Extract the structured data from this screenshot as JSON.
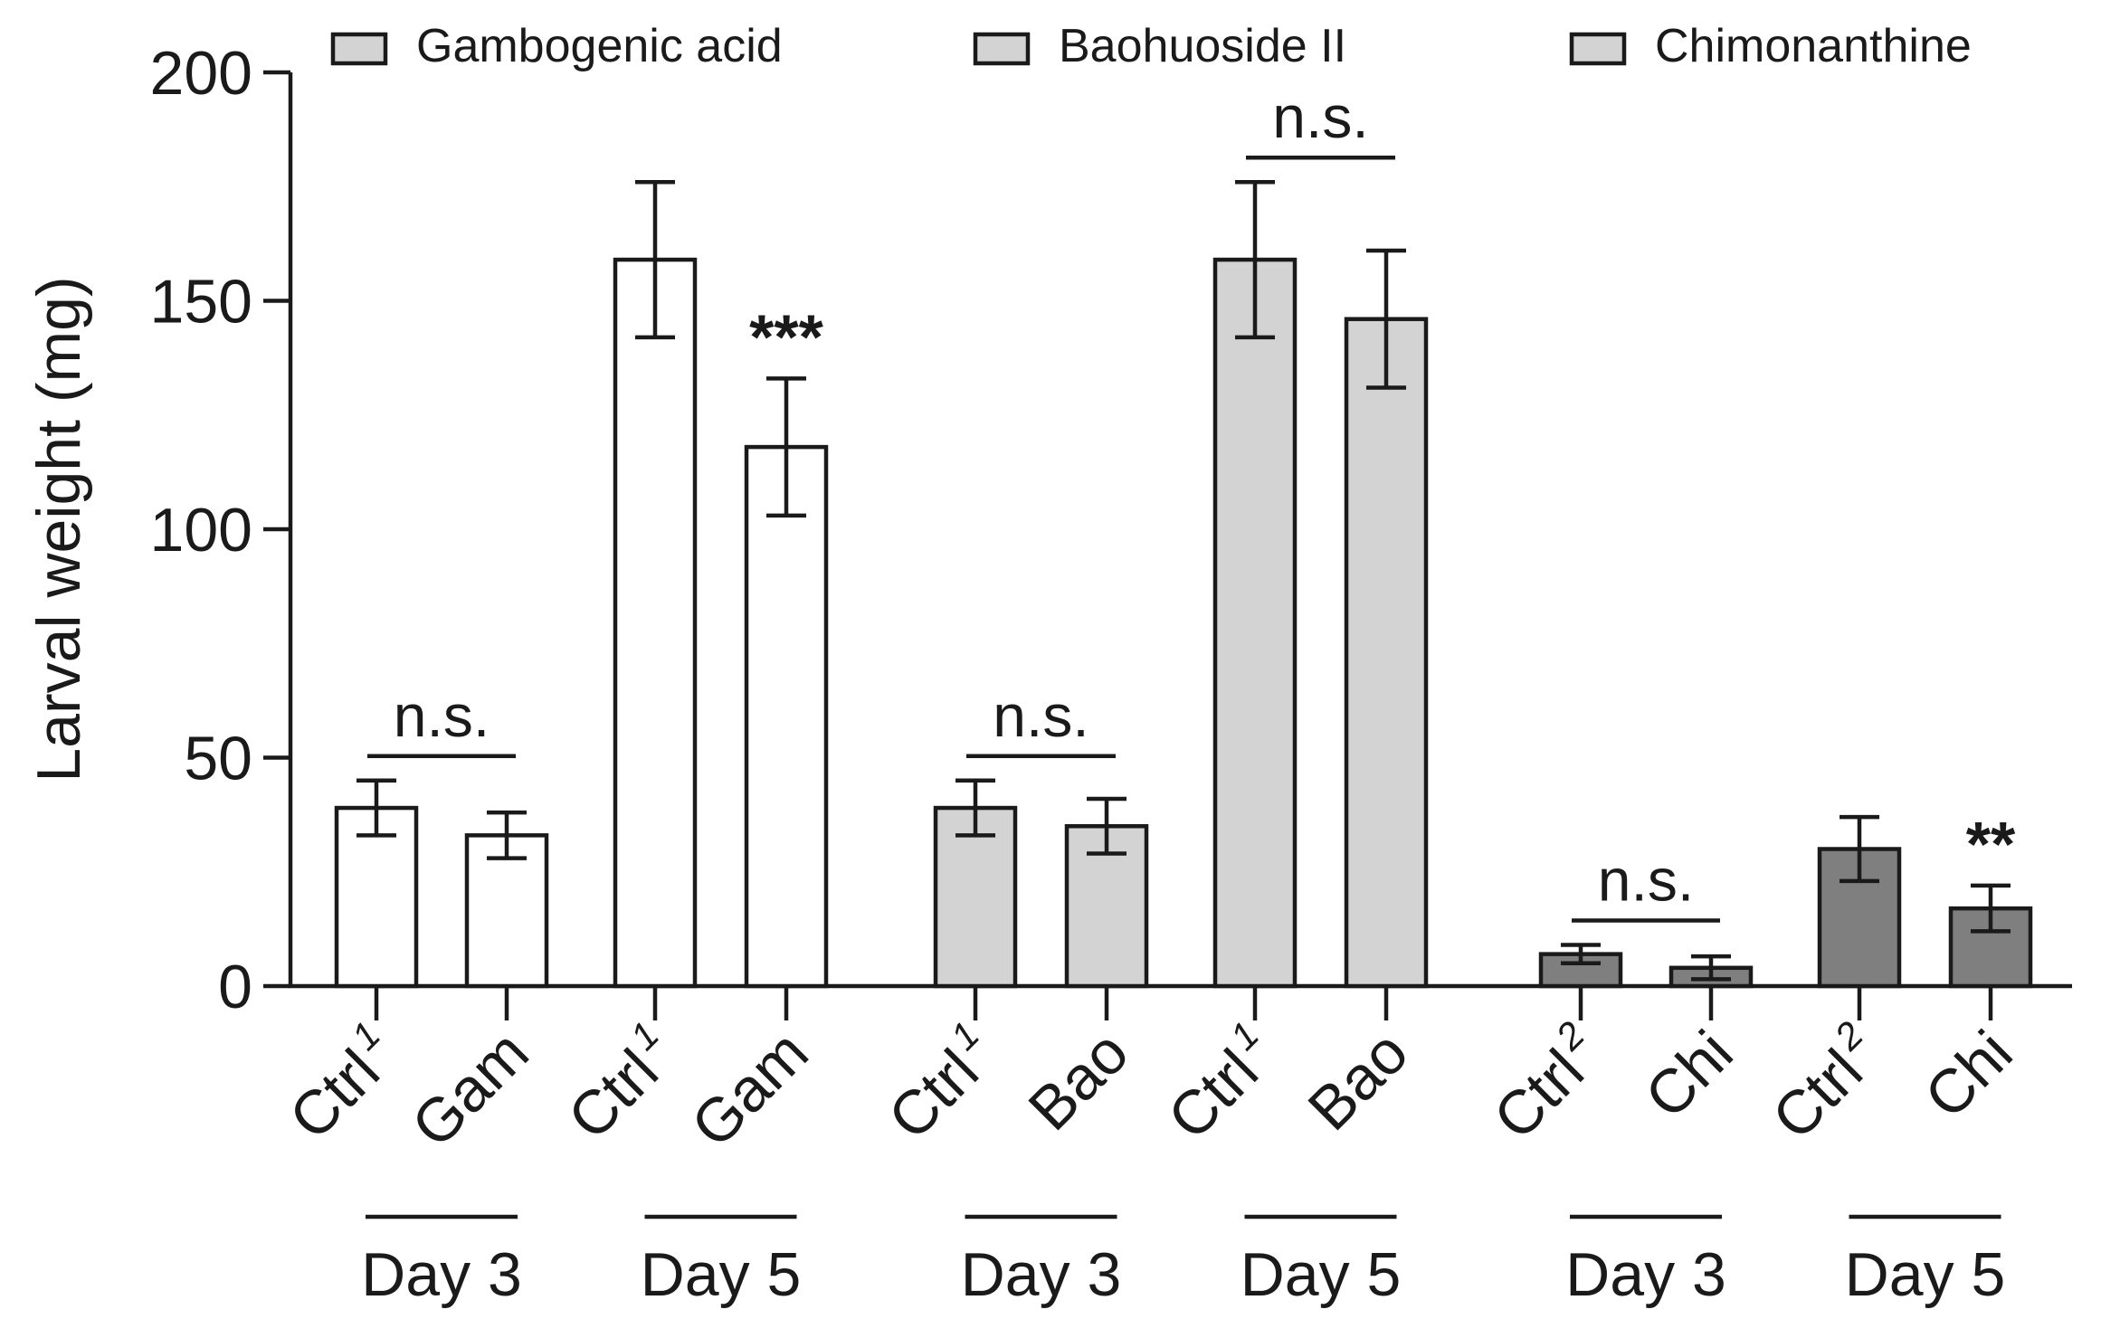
{
  "chart_data": {
    "type": "bar",
    "title": "",
    "xlabel": "",
    "ylabel": "Larval weight (mg)",
    "ylim": [
      0,
      200
    ],
    "yticks": [
      0,
      50,
      100,
      150,
      200
    ],
    "grid": false,
    "legend_position": "top",
    "legend": [
      {
        "label": "Gambogenic acid",
        "color": "#d3d3d3"
      },
      {
        "label": "Baohuoside II",
        "color": "#d3d3d3"
      },
      {
        "label": "Chimonanthine",
        "color": "#d3d3d3"
      }
    ],
    "colors": {
      "white": "#ffffff",
      "light": "#d3d3d3",
      "dark": "#7f7f7f",
      "ink": "#1a1a1a"
    },
    "bars": [
      {
        "label": "Ctrl",
        "sup": "1",
        "value": 39,
        "error": 6,
        "fill": "white"
      },
      {
        "label": "Gam",
        "sup": "",
        "value": 33,
        "error": 5,
        "fill": "white"
      },
      {
        "label": "Ctrl",
        "sup": "1",
        "value": 159,
        "error": 17,
        "fill": "white"
      },
      {
        "label": "Gam",
        "sup": "",
        "value": 118,
        "error": 15,
        "fill": "white"
      },
      {
        "label": "Ctrl",
        "sup": "1",
        "value": 39,
        "error": 6,
        "fill": "light"
      },
      {
        "label": "Bao",
        "sup": "",
        "value": 35,
        "error": 6,
        "fill": "light"
      },
      {
        "label": "Ctrl",
        "sup": "1",
        "value": 159,
        "error": 17,
        "fill": "light"
      },
      {
        "label": "Bao",
        "sup": "",
        "value": 146,
        "error": 15,
        "fill": "light"
      },
      {
        "label": "Ctrl",
        "sup": "2",
        "value": 7,
        "error": 2,
        "fill": "dark"
      },
      {
        "label": "Chi",
        "sup": "",
        "value": 4,
        "error": 2.5,
        "fill": "dark"
      },
      {
        "label": "Ctrl",
        "sup": "2",
        "value": 30,
        "error": 7,
        "fill": "dark"
      },
      {
        "label": "Chi",
        "sup": "",
        "value": 17,
        "error": 5,
        "fill": "dark"
      }
    ],
    "groups": [
      {
        "label": "Day 3",
        "bars": [
          0,
          1
        ]
      },
      {
        "label": "Day 5",
        "bars": [
          2,
          3
        ]
      },
      {
        "label": "Day 3",
        "bars": [
          4,
          5
        ]
      },
      {
        "label": "Day 5",
        "bars": [
          6,
          7
        ]
      },
      {
        "label": "Day 3",
        "bars": [
          8,
          9
        ]
      },
      {
        "label": "Day 5",
        "bars": [
          10,
          11
        ]
      }
    ],
    "annotations": [
      {
        "text": "n.s.",
        "type": "bracket",
        "bars": [
          0,
          1
        ]
      },
      {
        "text": "***",
        "type": "star",
        "bars": [
          3
        ]
      },
      {
        "text": "n.s.",
        "type": "bracket",
        "bars": [
          4,
          5
        ]
      },
      {
        "text": "n.s.",
        "type": "bracket",
        "bars": [
          6,
          7
        ]
      },
      {
        "text": "n.s.",
        "type": "bracket",
        "bars": [
          8,
          9
        ]
      },
      {
        "text": "**",
        "type": "star",
        "bars": [
          11
        ]
      }
    ]
  }
}
